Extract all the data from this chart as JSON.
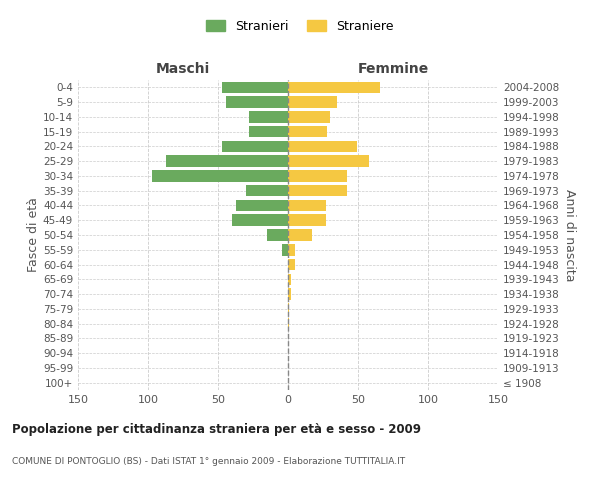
{
  "age_groups": [
    "100+",
    "95-99",
    "90-94",
    "85-89",
    "80-84",
    "75-79",
    "70-74",
    "65-69",
    "60-64",
    "55-59",
    "50-54",
    "45-49",
    "40-44",
    "35-39",
    "30-34",
    "25-29",
    "20-24",
    "15-19",
    "10-14",
    "5-9",
    "0-4"
  ],
  "birth_years": [
    "≤ 1908",
    "1909-1913",
    "1914-1918",
    "1919-1923",
    "1924-1928",
    "1929-1933",
    "1934-1938",
    "1939-1943",
    "1944-1948",
    "1949-1953",
    "1954-1958",
    "1959-1963",
    "1964-1968",
    "1969-1973",
    "1974-1978",
    "1979-1983",
    "1984-1988",
    "1989-1993",
    "1994-1998",
    "1999-2003",
    "2004-2008"
  ],
  "maschi": [
    0,
    0,
    0,
    0,
    0,
    0,
    0,
    0,
    0,
    4,
    15,
    40,
    37,
    30,
    97,
    87,
    47,
    28,
    28,
    44,
    47
  ],
  "femmine": [
    0,
    0,
    0,
    0,
    1,
    1,
    2,
    2,
    5,
    5,
    17,
    27,
    27,
    42,
    42,
    58,
    49,
    28,
    30,
    35,
    66
  ],
  "color_maschi": "#6aaa5e",
  "color_femmine": "#f5c842",
  "title": "Popolazione per cittadinanza straniera per età e sesso - 2009",
  "subtitle": "COMUNE DI PONTOGLIO (BS) - Dati ISTAT 1° gennaio 2009 - Elaborazione TUTTITALIA.IT",
  "xlabel_left": "Maschi",
  "xlabel_right": "Femmine",
  "ylabel_left": "Fasce di età",
  "ylabel_right": "Anni di nascita",
  "legend_maschi": "Stranieri",
  "legend_femmine": "Straniere",
  "xlim": 150,
  "background_color": "#ffffff",
  "grid_color": "#cccccc"
}
